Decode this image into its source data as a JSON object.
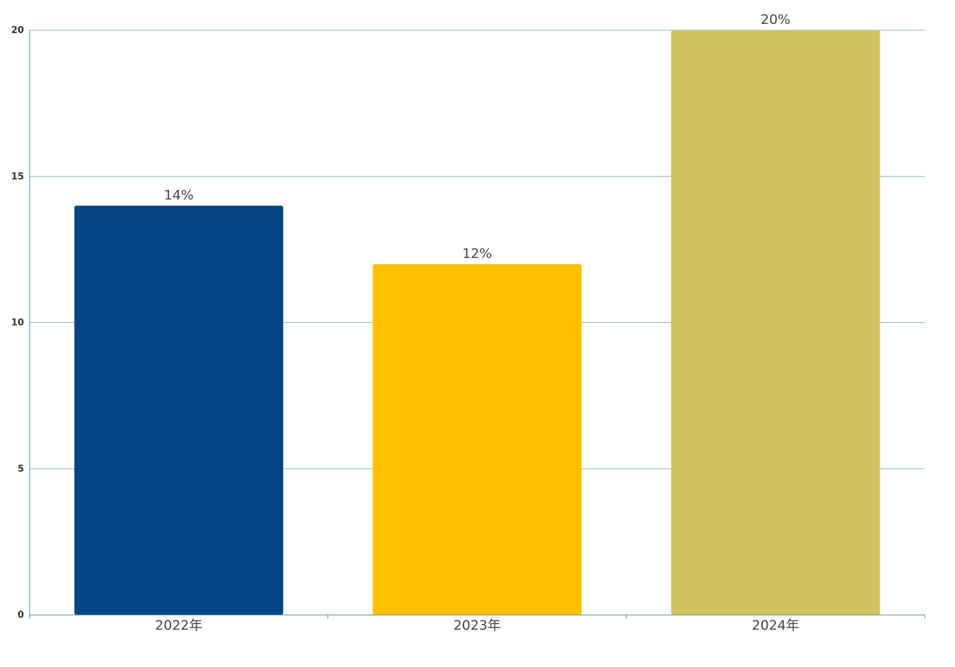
{
  "chart_data": {
    "type": "bar",
    "title": "",
    "xlabel": "",
    "ylabel": "",
    "categories": [
      "2022年",
      "2023年",
      "2024年"
    ],
    "values": [
      14,
      12,
      20
    ],
    "data_labels": [
      "14%",
      "12%",
      "20%"
    ],
    "colors": [
      "#064585",
      "#FFC000",
      "#D1C461"
    ],
    "ylim": [
      0,
      20
    ],
    "yticks": [
      0,
      5,
      10,
      15,
      20
    ],
    "ytick_labels": [
      "0",
      "5",
      "10",
      "15",
      "20"
    ],
    "grid": true,
    "legend": "none"
  }
}
